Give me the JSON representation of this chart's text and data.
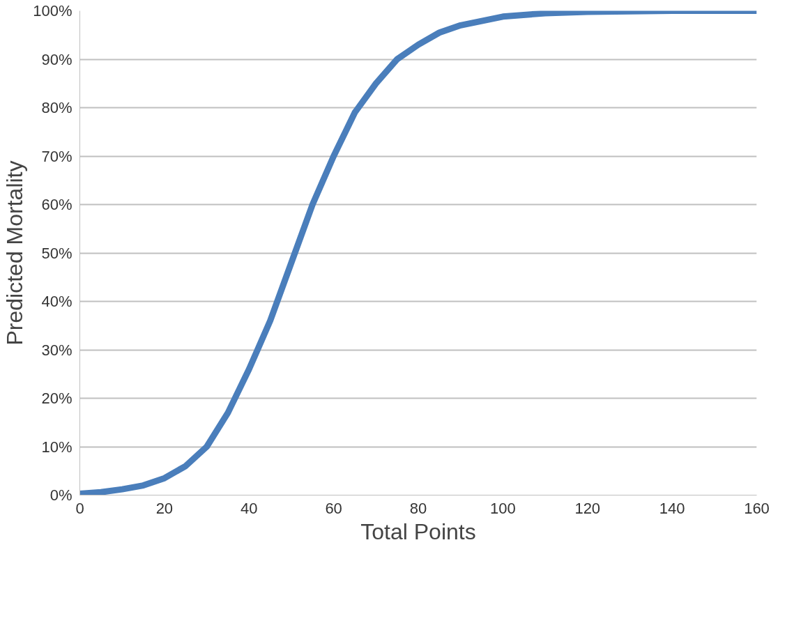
{
  "chart_data": {
    "type": "line",
    "xlabel": "Total Points",
    "ylabel": "Predicted Mortality",
    "x": [
      0,
      5,
      10,
      15,
      20,
      25,
      30,
      35,
      40,
      45,
      50,
      55,
      60,
      65,
      70,
      75,
      80,
      85,
      90,
      100,
      110,
      120,
      140,
      160
    ],
    "series": [
      {
        "color": "#4a7ebb",
        "values": [
          0.3,
          0.6,
          1.2,
          2,
          3.5,
          6,
          10,
          17,
          26,
          36,
          48,
          60,
          70,
          79,
          85,
          90,
          93,
          95.5,
          97,
          98.8,
          99.5,
          99.8,
          100,
          100
        ]
      }
    ],
    "xlim": [
      0,
      160
    ],
    "xticks": [
      0,
      20,
      40,
      60,
      80,
      100,
      120,
      140,
      160
    ],
    "ylim": [
      0,
      100
    ],
    "yticks": [
      {
        "value": 0,
        "label": "0%"
      },
      {
        "value": 10,
        "label": "10%"
      },
      {
        "value": 20,
        "label": "20%"
      },
      {
        "value": 30,
        "label": "30%"
      },
      {
        "value": 40,
        "label": "40%"
      },
      {
        "value": 50,
        "label": "50%"
      },
      {
        "value": 60,
        "label": "60%"
      },
      {
        "value": 70,
        "label": "70%"
      },
      {
        "value": 80,
        "label": "80%"
      },
      {
        "value": 90,
        "label": "90%"
      },
      {
        "value": 100,
        "label": "100%"
      }
    ],
    "grid": "y",
    "marker": "none",
    "line_style": "solid"
  }
}
